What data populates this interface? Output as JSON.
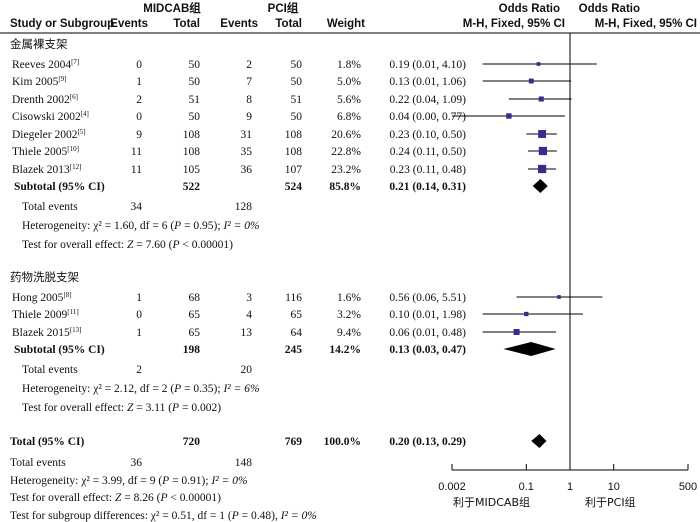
{
  "chart_data": {
    "type": "forest",
    "headers": {
      "study": "Study or Subgroup",
      "group1": "MIDCAB组",
      "group2": "PCI组",
      "events1": "Events",
      "total1": "Total",
      "events2": "Events",
      "total2": "Total",
      "weight": "Weight",
      "or_text": "Odds Ratio",
      "or_text_sub": "M-H, Fixed, 95% CI",
      "or_plot": "Odds Ratio",
      "or_plot_sub": "M-H, Fixed, 95% CI"
    },
    "subgroups": [
      {
        "title": "金属裸支架",
        "studies": [
          {
            "name": "Reeves 2004",
            "ref": "[7]",
            "e1": "0",
            "t1": "50",
            "e2": "2",
            "t2": "50",
            "weight": "1.8%",
            "ci_text": "0.19 (0.01, 4.10)",
            "or": 0.19,
            "lo": 0.01,
            "hi": 4.1
          },
          {
            "name": "Kim 2005",
            "ref": "[9]",
            "e1": "1",
            "t1": "50",
            "e2": "7",
            "t2": "50",
            "weight": "5.0%",
            "ci_text": "0.13 (0.01, 1.06)",
            "or": 0.13,
            "lo": 0.01,
            "hi": 1.06
          },
          {
            "name": "Drenth 2002",
            "ref": "[6]",
            "e1": "2",
            "t1": "51",
            "e2": "8",
            "t2": "51",
            "weight": "5.6%",
            "ci_text": "0.22 (0.04, 1.09)",
            "or": 0.22,
            "lo": 0.04,
            "hi": 1.09
          },
          {
            "name": "Cisowski 2002",
            "ref": "[4]",
            "e1": "0",
            "t1": "50",
            "e2": "9",
            "t2": "50",
            "weight": "6.8%",
            "ci_text": "0.04 (0.00, 0.77)",
            "or": 0.04,
            "lo": 0.002,
            "hi": 0.77
          },
          {
            "name": "Diegeler 2002",
            "ref": "[5]",
            "e1": "9",
            "t1": "108",
            "e2": "31",
            "t2": "108",
            "weight": "20.6%",
            "ci_text": "0.23 (0.10, 0.50)",
            "or": 0.23,
            "lo": 0.1,
            "hi": 0.5
          },
          {
            "name": "Thiele 2005",
            "ref": "[10]",
            "e1": "11",
            "t1": "108",
            "e2": "35",
            "t2": "108",
            "weight": "22.8%",
            "ci_text": "0.24 (0.11, 0.50)",
            "or": 0.24,
            "lo": 0.11,
            "hi": 0.5
          },
          {
            "name": "Blazek 2013",
            "ref": "[12]",
            "e1": "11",
            "t1": "105",
            "e2": "36",
            "t2": "107",
            "weight": "23.2%",
            "ci_text": "0.23 (0.11, 0.48)",
            "or": 0.23,
            "lo": 0.11,
            "hi": 0.48
          }
        ],
        "subtotal": {
          "label": "Subtotal (95% CI)",
          "t1": "522",
          "t2": "524",
          "weight": "85.8%",
          "ci_text": "0.21 (0.14, 0.31)",
          "or": 0.21,
          "lo": 0.14,
          "hi": 0.31
        },
        "total_events": {
          "label": "Total events",
          "e1": "34",
          "e2": "128"
        },
        "heterogeneity": {
          "prefix": "Heterogeneity: ",
          "chi": "χ² = 1.60, df = 6 (",
          "p": "P",
          "rest": " = 0.95); ",
          "i2": "I² = 0%"
        },
        "overall_effect": {
          "prefix": "Test for overall effect: ",
          "z": "Z",
          "mid": " = 7.60 (",
          "p": "P",
          "rest": " < 0.00001)"
        }
      },
      {
        "title": "药物洗脱支架",
        "studies": [
          {
            "name": "Hong 2005",
            "ref": "[8]",
            "e1": "1",
            "t1": "68",
            "e2": "3",
            "t2": "116",
            "weight": "1.6%",
            "ci_text": "0.56 (0.06, 5.51)",
            "or": 0.56,
            "lo": 0.06,
            "hi": 5.51
          },
          {
            "name": "Thiele 2009",
            "ref": "[11]",
            "e1": "0",
            "t1": "65",
            "e2": "4",
            "t2": "65",
            "weight": "3.2%",
            "ci_text": "0.10 (0.01, 1.98)",
            "or": 0.1,
            "lo": 0.01,
            "hi": 1.98
          },
          {
            "name": "Blazek 2015",
            "ref": "[13]",
            "e1": "1",
            "t1": "65",
            "e2": "13",
            "t2": "64",
            "weight": "9.4%",
            "ci_text": "0.06 (0.01, 0.48)",
            "or": 0.06,
            "lo": 0.01,
            "hi": 0.48
          }
        ],
        "subtotal": {
          "label": "Subtotal (95% CI)",
          "t1": "198",
          "t2": "245",
          "weight": "14.2%",
          "ci_text": "0.13 (0.03, 0.47)",
          "or": 0.13,
          "lo": 0.03,
          "hi": 0.47
        },
        "total_events": {
          "label": "Total events",
          "e1": "2",
          "e2": "20"
        },
        "heterogeneity": {
          "prefix": "Heterogeneity: ",
          "chi": "χ² = 2.12, df = 2 (",
          "p": "P",
          "rest": " = 0.35); ",
          "i2": "I² = 6%"
        },
        "overall_effect": {
          "prefix": "Test for overall effect: ",
          "z": "Z",
          "mid": " = 3.11 (",
          "p": "P",
          "rest": " = 0.002)"
        }
      }
    ],
    "total": {
      "label": "Total (95% CI)",
      "t1": "720",
      "t2": "769",
      "weight": "100.0%",
      "ci_text": "0.20 (0.13, 0.29)",
      "or": 0.2,
      "lo": 0.13,
      "hi": 0.29
    },
    "total_events": {
      "label": "Total events",
      "e1": "36",
      "e2": "148"
    },
    "heterogeneity": {
      "prefix": "Heterogeneity: ",
      "chi": "χ² = 3.99, df = 9 (",
      "p": "P",
      "rest": " = 0.91); ",
      "i2": "I² = 0%"
    },
    "overall_effect": {
      "prefix": "Test for overall effect: ",
      "z": "Z",
      "mid": " = 8.26 (",
      "p": "P",
      "rest": " < 0.00001)"
    },
    "subgroup_diff": {
      "prefix": "Test for subgroup differences: ",
      "chi": "χ² = 0.51, df = 1 (",
      "p": "P",
      "rest": " = 0.48), ",
      "i2": "I² = 0%"
    },
    "axis": {
      "scale": "log",
      "xlim": [
        0.002,
        500
      ],
      "ticks": [
        {
          "value": 0.002,
          "label": "0.002"
        },
        {
          "value": 0.1,
          "label": "0.1"
        },
        {
          "value": 1,
          "label": "1"
        },
        {
          "value": 10,
          "label": "10"
        },
        {
          "value": 500,
          "label": "500"
        }
      ],
      "left_label": "利于MIDCAB组",
      "right_label": "利于PCI组",
      "reference": 1
    },
    "marker_color": "#3a2a8c"
  }
}
